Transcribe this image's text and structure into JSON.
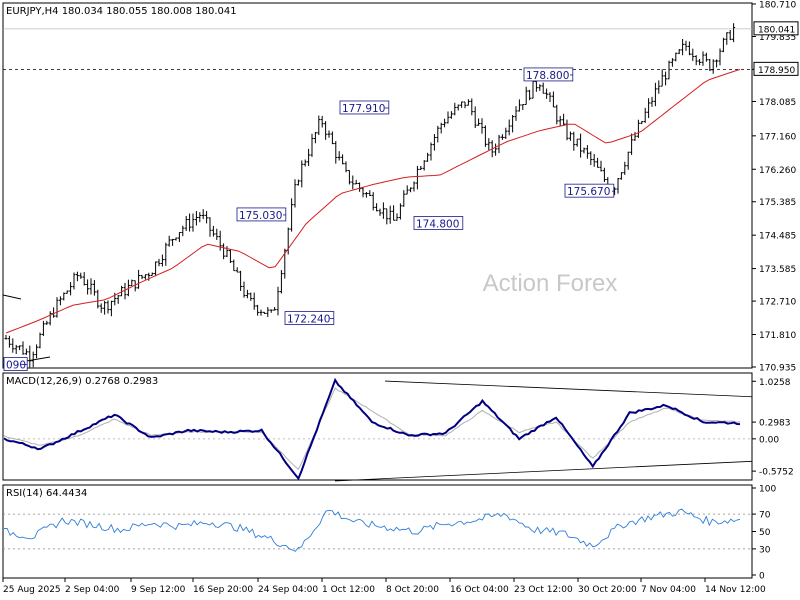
{
  "header": {
    "symbol": "EURJPY,H4",
    "ohlc": "180.034 180.055 180.008 180.041"
  },
  "watermark": "Action Forex",
  "colors": {
    "price": "#000000",
    "ma": "#d42020",
    "macd": "#000080",
    "signal": "#b0b0b0",
    "rsi": "#2f7fd8",
    "label": "#1a1a8c"
  },
  "chart_data": [
    {
      "type": "ohlc",
      "panel": "price",
      "ylim": [
        170.935,
        180.71
      ],
      "yticks": [
        "180.710",
        "179.835",
        "178.950",
        "178.085",
        "177.160",
        "176.260",
        "175.385",
        "174.485",
        "173.585",
        "172.710",
        "171.810",
        "170.935"
      ],
      "current_price": "180.041",
      "level_line": "178.950",
      "xticks": [
        "25 Aug 2025",
        "2 Sep 04:00",
        "9 Sep 12:00",
        "16 Sep 20:00",
        "24 Sep 04:00",
        "1 Oct 12:00",
        "8 Oct 20:00",
        "16 Oct 04:00",
        "23 Oct 12:00",
        "30 Oct 20:00",
        "7 Nov 04:00",
        "14 Nov 12:00"
      ],
      "annotations": [
        "090",
        "175.030",
        "172.240",
        "177.910",
        "174.800",
        "178.800",
        "175.670"
      ],
      "ma_anchor_values": [
        171.85,
        172.2,
        172.6,
        172.75,
        173.2,
        173.6,
        174.25,
        174.05,
        173.55,
        174.8,
        175.6,
        175.85,
        176.05,
        176.1,
        176.55,
        177.0,
        177.3,
        177.5,
        176.95,
        177.25,
        177.95,
        178.65,
        178.95
      ],
      "price_anchor_values": [
        171.7,
        171.25,
        172.5,
        173.45,
        172.55,
        173.05,
        173.55,
        174.55,
        175.05,
        174.05,
        172.7,
        172.3,
        176.0,
        177.6,
        176.1,
        175.5,
        174.85,
        176.3,
        177.55,
        178.1,
        176.7,
        177.9,
        178.65,
        177.3,
        176.6,
        175.7,
        177.25,
        178.65,
        179.6,
        179.05,
        180.05
      ]
    },
    {
      "type": "line",
      "panel": "macd",
      "title": "MACD(12,26,9) 0.2768 0.2983",
      "yticks": [
        "1.0258",
        "0.2983",
        "0.00",
        "-0.5752"
      ],
      "ylim": [
        -0.68,
        1.12
      ],
      "series": [
        {
          "values": [
            0.0,
            -0.18,
            0.12,
            0.43,
            0.02,
            0.15,
            0.12,
            0.15,
            -0.7,
            1.03,
            0.3,
            0.06,
            0.1,
            0.67,
            0.0,
            0.39,
            -0.5,
            0.46,
            0.6,
            0.3,
            0.28
          ]
        },
        {
          "values": [
            0.05,
            -0.12,
            0.05,
            0.35,
            0.06,
            0.12,
            0.13,
            0.12,
            -0.55,
            0.9,
            0.5,
            0.08,
            0.06,
            0.5,
            0.12,
            0.3,
            -0.35,
            0.3,
            0.55,
            0.33,
            0.3
          ]
        }
      ]
    },
    {
      "type": "line",
      "panel": "rsi",
      "title": "RSI(14) 64.4434",
      "yticks": [
        "100",
        "70",
        "50",
        "30",
        "0"
      ],
      "ylim": [
        0,
        100
      ],
      "series": [
        {
          "values": [
            50,
            44,
            63,
            58,
            52,
            60,
            56,
            61,
            54,
            42,
            28,
            75,
            60,
            55,
            50,
            59,
            63,
            70,
            52,
            48,
            34,
            58,
            67,
            73,
            61,
            64
          ]
        }
      ]
    }
  ]
}
